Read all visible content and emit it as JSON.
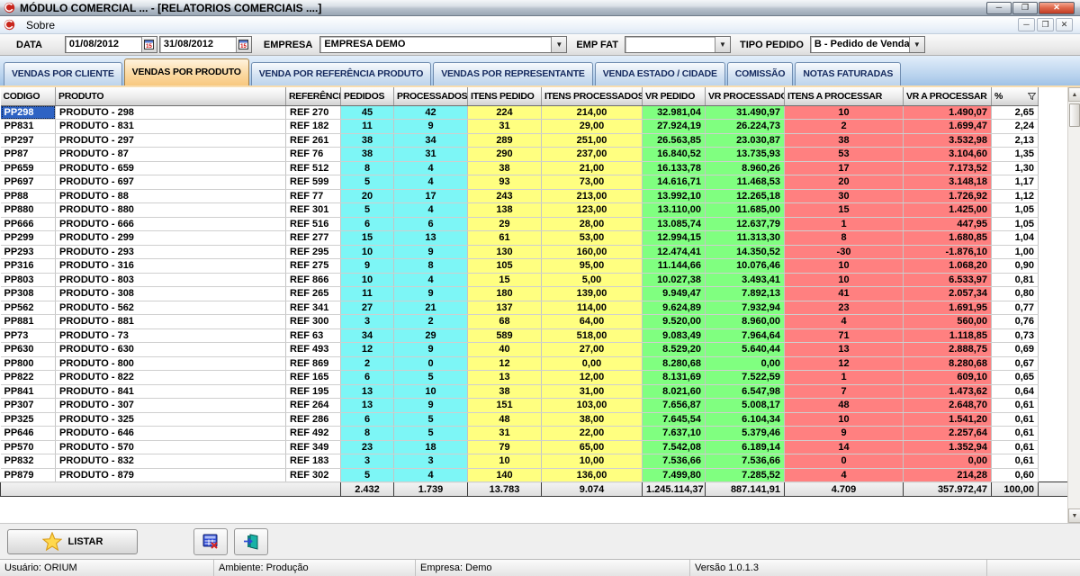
{
  "window": {
    "title": "MÓDULO COMERCIAL ... - [RELATORIOS COMERCIAIS ....]",
    "minimize": "─",
    "restore": "❐",
    "close": "✕"
  },
  "menu": {
    "sobre": "Sobre"
  },
  "toolbar": {
    "data_label": "DATA",
    "date_from": "01/08/2012",
    "date_to": "31/08/2012",
    "empresa_label": "EMPRESA",
    "empresa_value": "EMPRESA DEMO",
    "emp_fat_label": "EMP FAT",
    "emp_fat_value": "",
    "tipo_pedido_label": "TIPO PEDIDO",
    "tipo_pedido_value": "B - Pedido de Venda",
    "calendar_icon_day": "15"
  },
  "tabs": [
    {
      "label": "VENDAS POR CLIENTE",
      "active": false
    },
    {
      "label": "VENDAS POR PRODUTO",
      "active": true
    },
    {
      "label": "VENDA POR REFERÊNCIA PRODUTO",
      "active": false
    },
    {
      "label": "VENDAS POR REPRESENTANTE",
      "active": false
    },
    {
      "label": "VENDA ESTADO / CIDADE",
      "active": false
    },
    {
      "label": "COMISSÃO",
      "active": false
    },
    {
      "label": "NOTAS FATURADAS",
      "active": false
    }
  ],
  "grid": {
    "columns": [
      "CODIGO",
      "PRODUTO",
      "REFERÊNCIA",
      "PEDIDOS",
      "PROCESSADOS",
      "ITENS PEDIDO",
      "ITENS PROCESSADOS",
      "VR PEDIDO",
      "VR PROCESSADO",
      "ITENS A PROCESSAR",
      "VR A PROCESSAR",
      "%"
    ],
    "rows": [
      [
        "PP298",
        "PRODUTO - 298",
        "REF 270",
        "45",
        "42",
        "224",
        "214,00",
        "32.981,04",
        "31.490,97",
        "10",
        "1.490,07",
        "2,65"
      ],
      [
        "PP831",
        "PRODUTO - 831",
        "REF 182",
        "11",
        "9",
        "31",
        "29,00",
        "27.924,19",
        "26.224,73",
        "2",
        "1.699,47",
        "2,24"
      ],
      [
        "PP297",
        "PRODUTO - 297",
        "REF 261",
        "38",
        "34",
        "289",
        "251,00",
        "26.563,85",
        "23.030,87",
        "38",
        "3.532,98",
        "2,13"
      ],
      [
        "PP87",
        "PRODUTO - 87",
        "REF 76",
        "38",
        "31",
        "290",
        "237,00",
        "16.840,52",
        "13.735,93",
        "53",
        "3.104,60",
        "1,35"
      ],
      [
        "PP659",
        "PRODUTO - 659",
        "REF 512",
        "8",
        "4",
        "38",
        "21,00",
        "16.133,78",
        "8.960,26",
        "17",
        "7.173,52",
        "1,30"
      ],
      [
        "PP697",
        "PRODUTO - 697",
        "REF 599",
        "5",
        "4",
        "93",
        "73,00",
        "14.616,71",
        "11.468,53",
        "20",
        "3.148,18",
        "1,17"
      ],
      [
        "PP88",
        "PRODUTO - 88",
        "REF 77",
        "20",
        "17",
        "243",
        "213,00",
        "13.992,10",
        "12.265,18",
        "30",
        "1.726,92",
        "1,12"
      ],
      [
        "PP880",
        "PRODUTO - 880",
        "REF 301",
        "5",
        "4",
        "138",
        "123,00",
        "13.110,00",
        "11.685,00",
        "15",
        "1.425,00",
        "1,05"
      ],
      [
        "PP666",
        "PRODUTO - 666",
        "REF 516",
        "6",
        "6",
        "29",
        "28,00",
        "13.085,74",
        "12.637,79",
        "1",
        "447,95",
        "1,05"
      ],
      [
        "PP299",
        "PRODUTO - 299",
        "REF 277",
        "15",
        "13",
        "61",
        "53,00",
        "12.994,15",
        "11.313,30",
        "8",
        "1.680,85",
        "1,04"
      ],
      [
        "PP293",
        "PRODUTO - 293",
        "REF 295",
        "10",
        "9",
        "130",
        "160,00",
        "12.474,41",
        "14.350,52",
        "-30",
        "-1.876,10",
        "1,00"
      ],
      [
        "PP316",
        "PRODUTO - 316",
        "REF 275",
        "9",
        "8",
        "105",
        "95,00",
        "11.144,66",
        "10.076,46",
        "10",
        "1.068,20",
        "0,90"
      ],
      [
        "PP803",
        "PRODUTO - 803",
        "REF 866",
        "10",
        "4",
        "15",
        "5,00",
        "10.027,38",
        "3.493,41",
        "10",
        "6.533,97",
        "0,81"
      ],
      [
        "PP308",
        "PRODUTO - 308",
        "REF 265",
        "11",
        "9",
        "180",
        "139,00",
        "9.949,47",
        "7.892,13",
        "41",
        "2.057,34",
        "0,80"
      ],
      [
        "PP562",
        "PRODUTO - 562",
        "REF 341",
        "27",
        "21",
        "137",
        "114,00",
        "9.624,89",
        "7.932,94",
        "23",
        "1.691,95",
        "0,77"
      ],
      [
        "PP881",
        "PRODUTO - 881",
        "REF 300",
        "3",
        "2",
        "68",
        "64,00",
        "9.520,00",
        "8.960,00",
        "4",
        "560,00",
        "0,76"
      ],
      [
        "PP73",
        "PRODUTO - 73",
        "REF 63",
        "34",
        "29",
        "589",
        "518,00",
        "9.083,49",
        "7.964,64",
        "71",
        "1.118,85",
        "0,73"
      ],
      [
        "PP630",
        "PRODUTO - 630",
        "REF 493",
        "12",
        "9",
        "40",
        "27,00",
        "8.529,20",
        "5.640,44",
        "13",
        "2.888,75",
        "0,69"
      ],
      [
        "PP800",
        "PRODUTO - 800",
        "REF 869",
        "2",
        "0",
        "12",
        "0,00",
        "8.280,68",
        "0,00",
        "12",
        "8.280,68",
        "0,67"
      ],
      [
        "PP822",
        "PRODUTO - 822",
        "REF 165",
        "6",
        "5",
        "13",
        "12,00",
        "8.131,69",
        "7.522,59",
        "1",
        "609,10",
        "0,65"
      ],
      [
        "PP841",
        "PRODUTO - 841",
        "REF 195",
        "13",
        "10",
        "38",
        "31,00",
        "8.021,60",
        "6.547,98",
        "7",
        "1.473,62",
        "0,64"
      ],
      [
        "PP307",
        "PRODUTO - 307",
        "REF 264",
        "13",
        "9",
        "151",
        "103,00",
        "7.656,87",
        "5.008,17",
        "48",
        "2.648,70",
        "0,61"
      ],
      [
        "PP325",
        "PRODUTO - 325",
        "REF 286",
        "6",
        "5",
        "48",
        "38,00",
        "7.645,54",
        "6.104,34",
        "10",
        "1.541,20",
        "0,61"
      ],
      [
        "PP646",
        "PRODUTO - 646",
        "REF 492",
        "8",
        "5",
        "31",
        "22,00",
        "7.637,10",
        "5.379,46",
        "9",
        "2.257,64",
        "0,61"
      ],
      [
        "PP570",
        "PRODUTO - 570",
        "REF 349",
        "23",
        "18",
        "79",
        "65,00",
        "7.542,08",
        "6.189,14",
        "14",
        "1.352,94",
        "0,61"
      ],
      [
        "PP832",
        "PRODUTO - 832",
        "REF 183",
        "3",
        "3",
        "10",
        "10,00",
        "7.536,66",
        "7.536,66",
        "0",
        "0,00",
        "0,61"
      ],
      [
        "PP879",
        "PRODUTO - 879",
        "REF 302",
        "5",
        "4",
        "140",
        "136,00",
        "7.499,80",
        "7.285,52",
        "4",
        "214,28",
        "0,60"
      ]
    ],
    "totals": [
      "2.432",
      "1.739",
      "13.783",
      "9.074",
      "1.245.114,37",
      "887.141,91",
      "4.709",
      "357.972,47",
      "100,00"
    ],
    "selected_row": 0,
    "selected_col": 0
  },
  "buttons": {
    "listar": "LISTAR"
  },
  "status_bar": {
    "usuario": "Usuário: ORIUM",
    "ambiente": "Ambiente: Produção",
    "empresa": "Empresa: Demo",
    "versao": "Versão 1.0.1.3"
  },
  "colors": {
    "band_cyan": "#7DF6F6",
    "band_yellow": "#FFFF80",
    "band_green": "#80FF80",
    "band_red": "#FF8080",
    "selection": "#2E63C4",
    "active_tab": "#FBD9A2"
  }
}
